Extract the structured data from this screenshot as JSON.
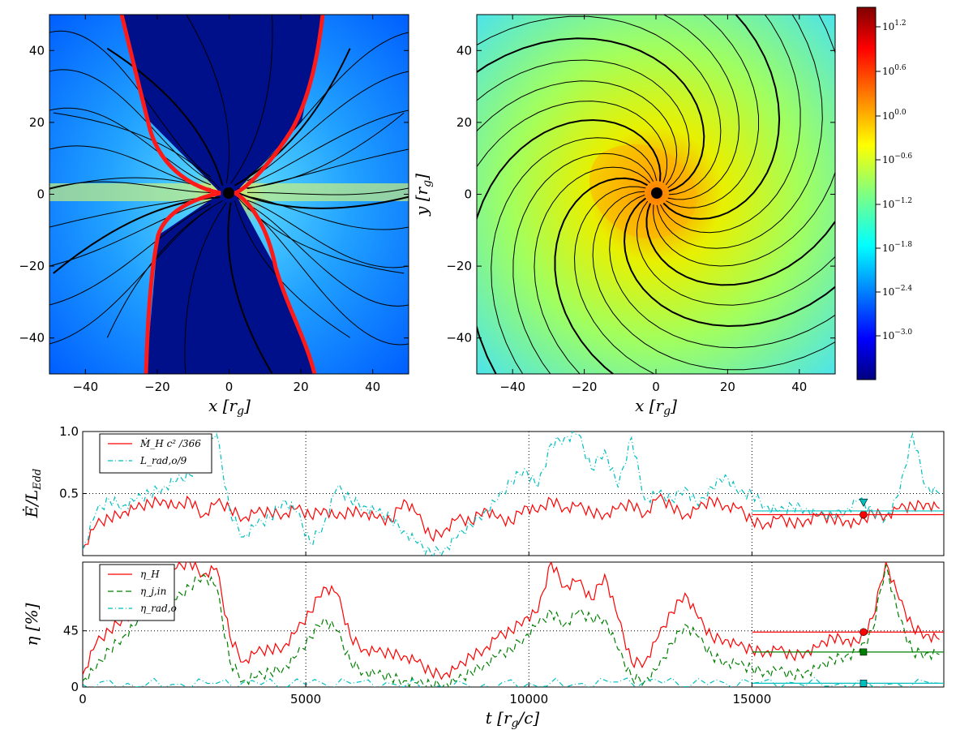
{
  "chart_data": [
    {
      "type": "heatmap",
      "panel": "top-left",
      "xlabel": "x [r_g]",
      "ylabel": "y [r_g]",
      "xlim": [
        -50,
        50
      ],
      "ylim": [
        -50,
        50
      ],
      "xticks": [
        -40,
        -20,
        0,
        20,
        40
      ],
      "yticks": [
        -40,
        -20,
        0,
        20,
        40
      ],
      "overlays": [
        "streamlines",
        "red boundary contour",
        "black hole at origin"
      ]
    },
    {
      "type": "heatmap",
      "panel": "top-right",
      "xlabel": "x [r_g]",
      "ylabel": "y [r_g]",
      "xlim": [
        -50,
        50
      ],
      "ylim": [
        -50,
        50
      ],
      "xticks": [
        -40,
        -20,
        0,
        20,
        40
      ],
      "yticks": [
        -40,
        -20,
        0,
        20,
        40
      ],
      "overlays": [
        "spiral streamlines",
        "black hole at origin"
      ],
      "colorbar": {
        "scale": "log",
        "colormap": "jet",
        "tick_exponents": [
          "1.2",
          "0.6",
          "0.0",
          "−0.6",
          "−1.2",
          "−1.8",
          "−2.4",
          "−3.0"
        ],
        "tick_base": "10"
      }
    },
    {
      "type": "line",
      "panel": "middle",
      "ylabel": "Ė/L_Edd",
      "xlim": [
        0,
        19300
      ],
      "ylim": [
        0,
        1.0
      ],
      "yticks": [
        "0.5",
        "1.0"
      ],
      "grid": true,
      "legend": "top-left",
      "series": [
        {
          "name": "Ṁ_H c² /366",
          "color": "#ff0000",
          "style": "solid",
          "x": [
            0,
            300,
            600,
            900,
            1200,
            1500,
            1800,
            2100,
            2400,
            2700,
            3000,
            3300,
            3600,
            3900,
            4200,
            4500,
            4800,
            5100,
            5400,
            5700,
            6000,
            6300,
            6600,
            6900,
            7200,
            7500,
            7800,
            8100,
            8400,
            8700,
            9000,
            9300,
            9600,
            9900,
            10200,
            10500,
            10800,
            11100,
            11400,
            11700,
            12000,
            12300,
            12600,
            12900,
            13200,
            13500,
            13800,
            14100,
            14400,
            14700,
            15000,
            15300,
            15600,
            15900,
            16200,
            16500,
            16800,
            17100,
            17400,
            17700,
            18000,
            18300,
            18600,
            18900,
            19200
          ],
          "y": [
            0.05,
            0.25,
            0.3,
            0.35,
            0.38,
            0.42,
            0.45,
            0.38,
            0.45,
            0.32,
            0.43,
            0.38,
            0.3,
            0.35,
            0.35,
            0.33,
            0.38,
            0.32,
            0.38,
            0.3,
            0.36,
            0.35,
            0.3,
            0.28,
            0.45,
            0.33,
            0.15,
            0.2,
            0.3,
            0.27,
            0.38,
            0.3,
            0.27,
            0.4,
            0.35,
            0.45,
            0.38,
            0.4,
            0.35,
            0.33,
            0.38,
            0.42,
            0.33,
            0.47,
            0.4,
            0.32,
            0.38,
            0.45,
            0.4,
            0.38,
            0.28,
            0.25,
            0.3,
            0.26,
            0.28,
            0.32,
            0.3,
            0.28,
            0.25,
            0.35,
            0.32,
            0.38,
            0.4,
            0.42,
            0.38
          ]
        },
        {
          "name": "L_rad,o/9",
          "color": "#00bfbf",
          "style": "dashdot",
          "x": [
            0,
            300,
            600,
            900,
            1200,
            1500,
            1800,
            2100,
            2400,
            2700,
            3000,
            3300,
            3600,
            3900,
            4200,
            4500,
            4800,
            5100,
            5400,
            5700,
            6000,
            6300,
            6600,
            6900,
            7200,
            7500,
            7800,
            8100,
            8400,
            8700,
            9000,
            9300,
            9600,
            9900,
            10200,
            10500,
            10800,
            11100,
            11400,
            11700,
            12000,
            12300,
            12600,
            12900,
            13200,
            13500,
            13800,
            14100,
            14400,
            14700,
            15000,
            15300,
            15600,
            15900,
            16200,
            16500,
            16800,
            17100,
            17400,
            17700,
            18000,
            18300,
            18600,
            18900,
            19200
          ],
          "y": [
            0.05,
            0.35,
            0.45,
            0.4,
            0.45,
            0.5,
            0.55,
            0.6,
            0.65,
            0.8,
            0.98,
            0.35,
            0.15,
            0.25,
            0.3,
            0.45,
            0.35,
            0.1,
            0.25,
            0.55,
            0.45,
            0.4,
            0.35,
            0.3,
            0.2,
            0.1,
            0.02,
            0.05,
            0.15,
            0.25,
            0.35,
            0.45,
            0.6,
            0.7,
            0.55,
            0.9,
            0.95,
            0.98,
            0.7,
            0.85,
            0.55,
            0.95,
            0.45,
            0.5,
            0.45,
            0.55,
            0.4,
            0.55,
            0.65,
            0.5,
            0.5,
            0.4,
            0.35,
            0.4,
            0.38,
            0.32,
            0.33,
            0.36,
            0.45,
            0.35,
            0.3,
            0.5,
            0.98,
            0.55,
            0.5
          ]
        }
      ],
      "averages": [
        {
          "series": "Ṁ_H c² /366",
          "from": 15000,
          "value": 0.33,
          "marker": "circle",
          "marker_t": 17500
        },
        {
          "series": "L_rad,o/9",
          "from": 15000,
          "value": 0.36,
          "marker": "triangle",
          "marker_t": 17500,
          "marker_value": 0.43
        }
      ]
    },
    {
      "type": "line",
      "panel": "bottom",
      "xlabel": "t [r_g/c]",
      "ylabel": "η [%]",
      "xlim": [
        0,
        19300
      ],
      "ylim": [
        0,
        100
      ],
      "xticks": [
        "0",
        "5000",
        "10000",
        "15000"
      ],
      "yticks": [
        "0",
        "45"
      ],
      "grid": true,
      "legend": "top-left",
      "series": [
        {
          "name": "η_H",
          "color": "#ff0000",
          "style": "solid",
          "x": [
            0,
            300,
            600,
            900,
            1200,
            1500,
            1800,
            2100,
            2400,
            2700,
            3000,
            3300,
            3600,
            3900,
            4200,
            4500,
            4800,
            5100,
            5400,
            5700,
            6000,
            6300,
            6600,
            6900,
            7200,
            7500,
            7800,
            8100,
            8400,
            8700,
            9000,
            9300,
            9600,
            9900,
            10200,
            10500,
            10800,
            11100,
            11400,
            11700,
            12000,
            12300,
            12600,
            12900,
            13200,
            13500,
            13800,
            14100,
            14400,
            14700,
            15000,
            15300,
            15600,
            15900,
            16200,
            16500,
            16800,
            17100,
            17400,
            17700,
            18000,
            18300,
            18600,
            18900,
            19200
          ],
          "y": [
            10,
            35,
            45,
            55,
            60,
            75,
            90,
            95,
            100,
            90,
            95,
            40,
            20,
            28,
            30,
            32,
            45,
            60,
            80,
            75,
            40,
            30,
            28,
            27,
            25,
            20,
            12,
            10,
            15,
            25,
            30,
            40,
            45,
            55,
            60,
            100,
            80,
            85,
            70,
            90,
            55,
            20,
            20,
            40,
            60,
            75,
            55,
            40,
            38,
            33,
            30,
            28,
            30,
            25,
            28,
            32,
            40,
            38,
            35,
            55,
            100,
            70,
            48,
            42,
            38
          ]
        },
        {
          "name": "η_j,in",
          "color": "#008000",
          "style": "dashed",
          "x": [
            0,
            300,
            600,
            900,
            1200,
            1500,
            1800,
            2100,
            2400,
            2700,
            3000,
            3300,
            3600,
            3900,
            4200,
            4500,
            4800,
            5100,
            5400,
            5700,
            6000,
            6300,
            6600,
            6900,
            7200,
            7500,
            7800,
            8100,
            8400,
            8700,
            9000,
            9300,
            9600,
            9900,
            10200,
            10500,
            10800,
            11100,
            11400,
            11700,
            12000,
            12300,
            12600,
            12900,
            13200,
            13500,
            13800,
            14100,
            14400,
            14700,
            15000,
            15300,
            15600,
            15900,
            16200,
            16500,
            16800,
            17100,
            17400,
            17700,
            18000,
            18300,
            18600,
            18900,
            19200
          ],
          "y": [
            5,
            15,
            30,
            40,
            50,
            60,
            70,
            70,
            80,
            90,
            80,
            20,
            5,
            8,
            12,
            15,
            25,
            40,
            55,
            45,
            20,
            12,
            10,
            8,
            5,
            3,
            2,
            2,
            5,
            12,
            18,
            25,
            30,
            40,
            50,
            60,
            50,
            60,
            55,
            55,
            30,
            8,
            5,
            15,
            35,
            50,
            40,
            25,
            20,
            18,
            15,
            12,
            13,
            10,
            12,
            15,
            22,
            25,
            28,
            45,
            98,
            55,
            28,
            27,
            26
          ]
        },
        {
          "name": "η_rad,o",
          "color": "#00bfbf",
          "style": "dashdot",
          "x": [
            0,
            1000,
            2000,
            3000,
            4000,
            5000,
            6000,
            7000,
            8000,
            9000,
            10000,
            11000,
            12000,
            13000,
            14000,
            15000,
            16000,
            17000,
            18000,
            19200
          ],
          "y": [
            2,
            3,
            2,
            3,
            2,
            2,
            3,
            2,
            1,
            2,
            3,
            2,
            4,
            3,
            2,
            3,
            3,
            3,
            2,
            3
          ]
        }
      ],
      "averages": [
        {
          "series": "η_H",
          "from": 15000,
          "value": 44,
          "marker": "circle",
          "marker_t": 17500
        },
        {
          "series": "η_j,in",
          "from": 15000,
          "value": 28,
          "marker": "square",
          "marker_t": 17500
        },
        {
          "series": "η_rad,o",
          "from": 15000,
          "value": 3,
          "marker": "square",
          "marker_t": 17500
        }
      ]
    }
  ]
}
